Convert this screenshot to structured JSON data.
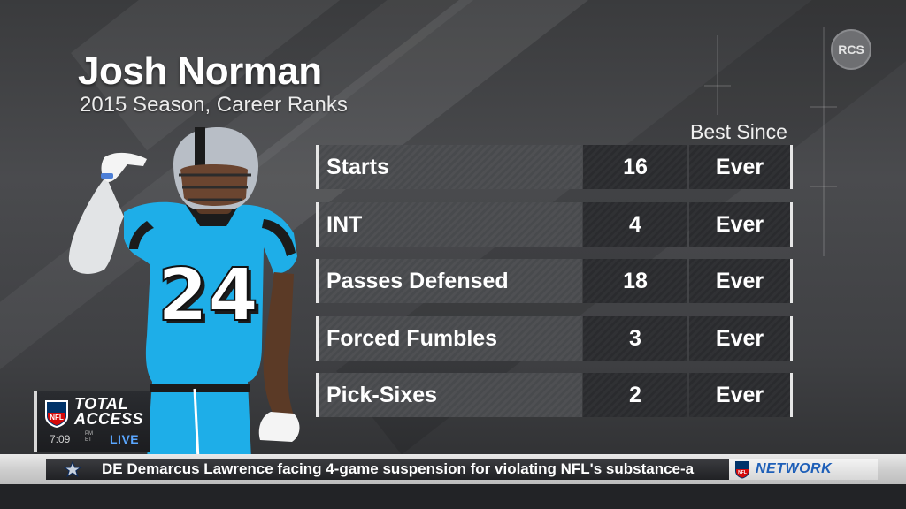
{
  "header": {
    "player_name": "Josh Norman",
    "subtitle": "2015 Season, Career Ranks"
  },
  "corner_badge": {
    "label": "RCS"
  },
  "table": {
    "column_header": "Best Since",
    "rows": [
      {
        "stat": "Starts",
        "value": "16",
        "since": "Ever"
      },
      {
        "stat": "INT",
        "value": "4",
        "since": "Ever"
      },
      {
        "stat": "Passes Defensed",
        "value": "18",
        "since": "Ever"
      },
      {
        "stat": "Forced Fumbles",
        "value": "3",
        "since": "Ever"
      },
      {
        "stat": "Pick-Sixes",
        "value": "2",
        "since": "Ever"
      }
    ]
  },
  "player": {
    "jersey_number": "24"
  },
  "show_bug": {
    "title_line1": "TOTAL",
    "title_line2": "ACCESS",
    "time": "7:09",
    "tz_line1": "PM",
    "tz_line2": "ET",
    "status": "LIVE"
  },
  "ticker": {
    "team_icon": "star-logo-icon",
    "text": "DE Demarcus Lawrence facing 4-game suspension for violating NFL's substance-a",
    "network_label": "NETWORK"
  },
  "colors": {
    "jersey_blue": "#1eaee8",
    "live_blue": "#5aa7ff",
    "network_blue": "#1e5fb8"
  }
}
